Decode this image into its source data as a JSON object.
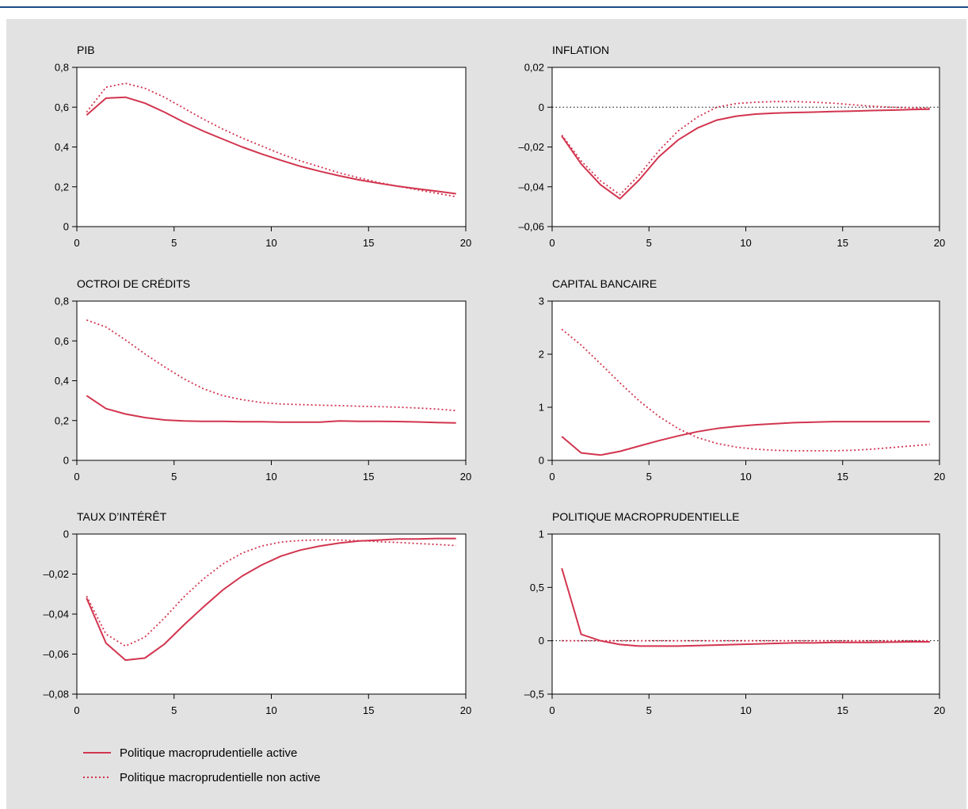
{
  "colors": {
    "series": "#d2354f",
    "background": "#e2e2e2",
    "rule": "#1c4e88"
  },
  "legend": {
    "items": [
      {
        "label": "Politique macroprudentielle active",
        "style": "solid"
      },
      {
        "label": "Politique macroprudentielle non active",
        "style": "dotted"
      }
    ]
  },
  "chart_data": [
    {
      "type": "line",
      "title": "PIB",
      "xlim": [
        0,
        20
      ],
      "ylim": [
        0,
        0.8
      ],
      "xticks": [
        0,
        5,
        10,
        15,
        20
      ],
      "xtick_labels": [
        "0",
        "5",
        "10",
        "15",
        "20"
      ],
      "yticks": [
        0,
        0.2,
        0.4,
        0.6,
        0.8
      ],
      "ytick_labels": [
        "0",
        "0,2",
        "0,4",
        "0,6",
        "0,8"
      ],
      "zero_line": false,
      "x": [
        0.5,
        1.5,
        2.5,
        3.5,
        4.5,
        5.5,
        6.5,
        7.5,
        8.5,
        9.5,
        10.5,
        11.5,
        12.5,
        13.5,
        14.5,
        15.5,
        16.5,
        17.5,
        18.5,
        19.5
      ],
      "series": [
        {
          "name": "Politique macroprudentielle active",
          "style": "solid",
          "values": [
            0.56,
            0.645,
            0.65,
            0.62,
            0.575,
            0.525,
            0.48,
            0.44,
            0.4,
            0.365,
            0.333,
            0.303,
            0.278,
            0.255,
            0.235,
            0.218,
            0.203,
            0.19,
            0.178,
            0.165
          ]
        },
        {
          "name": "Politique macroprudentielle non active",
          "style": "dotted",
          "values": [
            0.575,
            0.7,
            0.72,
            0.695,
            0.65,
            0.595,
            0.54,
            0.49,
            0.445,
            0.405,
            0.365,
            0.33,
            0.3,
            0.27,
            0.245,
            0.222,
            0.203,
            0.185,
            0.168,
            0.15
          ]
        }
      ]
    },
    {
      "type": "line",
      "title": "INFLATION",
      "xlim": [
        0,
        20
      ],
      "ylim": [
        -0.06,
        0.02
      ],
      "xticks": [
        0,
        5,
        10,
        15,
        20
      ],
      "xtick_labels": [
        "0",
        "5",
        "10",
        "15",
        "20"
      ],
      "yticks": [
        -0.06,
        -0.04,
        -0.02,
        0,
        0.02
      ],
      "ytick_labels": [
        "–0,06",
        "–0,04",
        "–0,02",
        "0",
        "0,02"
      ],
      "zero_line": true,
      "x": [
        0.5,
        1.5,
        2.5,
        3.5,
        4.5,
        5.5,
        6.5,
        7.5,
        8.5,
        9.5,
        10.5,
        11.5,
        12.5,
        13.5,
        14.5,
        15.5,
        16.5,
        17.5,
        18.5,
        19.5
      ],
      "series": [
        {
          "name": "Politique macroprudentielle active",
          "style": "solid",
          "values": [
            -0.0145,
            -0.0285,
            -0.039,
            -0.046,
            -0.0365,
            -0.025,
            -0.0165,
            -0.0105,
            -0.0065,
            -0.0045,
            -0.0035,
            -0.003,
            -0.0027,
            -0.0025,
            -0.0022,
            -0.002,
            -0.0017,
            -0.0015,
            -0.0012,
            -0.001
          ]
        },
        {
          "name": "Politique macroprudentielle non active",
          "style": "dotted",
          "values": [
            -0.014,
            -0.027,
            -0.037,
            -0.044,
            -0.034,
            -0.022,
            -0.012,
            -0.005,
            0.0,
            0.0018,
            0.0025,
            0.0028,
            0.0028,
            0.0025,
            0.002,
            0.0012,
            0.0005,
            0.0,
            -0.0003,
            -0.0005
          ]
        }
      ]
    },
    {
      "type": "line",
      "title": "OCTROI DE CRÉDITS",
      "xlim": [
        0,
        20
      ],
      "ylim": [
        0,
        0.8
      ],
      "xticks": [
        0,
        5,
        10,
        15,
        20
      ],
      "xtick_labels": [
        "0",
        "5",
        "10",
        "15",
        "20"
      ],
      "yticks": [
        0,
        0.2,
        0.4,
        0.6,
        0.8
      ],
      "ytick_labels": [
        "0",
        "0,2",
        "0,4",
        "0,6",
        "0,8"
      ],
      "zero_line": false,
      "x": [
        0.5,
        1.5,
        2.5,
        3.5,
        4.5,
        5.5,
        6.5,
        7.5,
        8.5,
        9.5,
        10.5,
        11.5,
        12.5,
        13.5,
        14.5,
        15.5,
        16.5,
        17.5,
        18.5,
        19.5
      ],
      "series": [
        {
          "name": "Politique macroprudentielle active",
          "style": "solid",
          "values": [
            0.325,
            0.26,
            0.233,
            0.215,
            0.203,
            0.198,
            0.196,
            0.196,
            0.194,
            0.194,
            0.192,
            0.192,
            0.192,
            0.198,
            0.196,
            0.196,
            0.195,
            0.193,
            0.19,
            0.188
          ]
        },
        {
          "name": "Politique macroprudentielle non active",
          "style": "dotted",
          "values": [
            0.705,
            0.67,
            0.605,
            0.535,
            0.47,
            0.41,
            0.36,
            0.325,
            0.305,
            0.29,
            0.283,
            0.28,
            0.277,
            0.275,
            0.272,
            0.27,
            0.267,
            0.263,
            0.258,
            0.25
          ]
        }
      ]
    },
    {
      "type": "line",
      "title": "CAPITAL BANCAIRE",
      "xlim": [
        0,
        20
      ],
      "ylim": [
        0,
        3
      ],
      "xticks": [
        0,
        5,
        10,
        15,
        20
      ],
      "xtick_labels": [
        "0",
        "5",
        "10",
        "15",
        "20"
      ],
      "yticks": [
        0,
        1,
        2,
        3
      ],
      "ytick_labels": [
        "0",
        "1",
        "2",
        "3"
      ],
      "zero_line": false,
      "x": [
        0.5,
        1.5,
        2.5,
        3.5,
        4.5,
        5.5,
        6.5,
        7.5,
        8.5,
        9.5,
        10.5,
        11.5,
        12.5,
        13.5,
        14.5,
        15.5,
        16.5,
        17.5,
        18.5,
        19.5
      ],
      "series": [
        {
          "name": "Politique macroprudentielle active",
          "style": "solid",
          "values": [
            0.45,
            0.14,
            0.1,
            0.17,
            0.27,
            0.37,
            0.46,
            0.54,
            0.6,
            0.64,
            0.67,
            0.69,
            0.71,
            0.72,
            0.73,
            0.73,
            0.73,
            0.73,
            0.73,
            0.73
          ]
        },
        {
          "name": "Politique macroprudentielle non active",
          "style": "dotted",
          "values": [
            2.47,
            2.17,
            1.82,
            1.46,
            1.12,
            0.83,
            0.6,
            0.43,
            0.32,
            0.25,
            0.21,
            0.19,
            0.18,
            0.18,
            0.18,
            0.19,
            0.21,
            0.24,
            0.27,
            0.3
          ]
        }
      ]
    },
    {
      "type": "line",
      "title": "TAUX D’INTÉRÊT",
      "xlim": [
        0,
        20
      ],
      "ylim": [
        -0.08,
        0
      ],
      "xticks": [
        0,
        5,
        10,
        15,
        20
      ],
      "xtick_labels": [
        "0",
        "5",
        "10",
        "15",
        "20"
      ],
      "yticks": [
        -0.08,
        -0.06,
        -0.04,
        -0.02,
        0
      ],
      "ytick_labels": [
        "–0,08",
        "–0,06",
        "–0,04",
        "–0,02",
        "0"
      ],
      "zero_line": false,
      "x": [
        0.5,
        1.5,
        2.5,
        3.5,
        4.5,
        5.5,
        6.5,
        7.5,
        8.5,
        9.5,
        10.5,
        11.5,
        12.5,
        13.5,
        14.5,
        15.5,
        16.5,
        17.5,
        18.5,
        19.5
      ],
      "series": [
        {
          "name": "Politique macroprudentielle active",
          "style": "solid",
          "values": [
            -0.032,
            -0.0545,
            -0.063,
            -0.062,
            -0.055,
            -0.0455,
            -0.0365,
            -0.028,
            -0.021,
            -0.0155,
            -0.011,
            -0.008,
            -0.006,
            -0.0045,
            -0.0035,
            -0.003,
            -0.0025,
            -0.0025,
            -0.0022,
            -0.0022
          ]
        },
        {
          "name": "Politique macroprudentielle non active",
          "style": "dotted",
          "values": [
            -0.031,
            -0.05,
            -0.056,
            -0.0515,
            -0.042,
            -0.0315,
            -0.0225,
            -0.015,
            -0.0095,
            -0.006,
            -0.004,
            -0.0032,
            -0.0029,
            -0.003,
            -0.0033,
            -0.0038,
            -0.0042,
            -0.0047,
            -0.0052,
            -0.0058
          ]
        }
      ]
    },
    {
      "type": "line",
      "title": "POLITIQUE MACROPRUDENTIELLE",
      "xlim": [
        0,
        20
      ],
      "ylim": [
        -0.5,
        1
      ],
      "xticks": [
        0,
        5,
        10,
        15,
        20
      ],
      "xtick_labels": [
        "0",
        "5",
        "10",
        "15",
        "20"
      ],
      "yticks": [
        -0.5,
        0,
        0.5,
        1
      ],
      "ytick_labels": [
        "–0,5",
        "0",
        "0,5",
        "1"
      ],
      "zero_line": true,
      "x": [
        0.5,
        1.5,
        2.5,
        3.5,
        4.5,
        5.5,
        6.5,
        7.5,
        8.5,
        9.5,
        10.5,
        11.5,
        12.5,
        13.5,
        14.5,
        15.5,
        16.5,
        17.5,
        18.5,
        19.5
      ],
      "series": [
        {
          "name": "Politique macroprudentielle active",
          "style": "solid",
          "values": [
            0.68,
            0.06,
            0.0,
            -0.035,
            -0.05,
            -0.05,
            -0.05,
            -0.045,
            -0.04,
            -0.035,
            -0.03,
            -0.025,
            -0.02,
            -0.02,
            -0.015,
            -0.015,
            -0.015,
            -0.013,
            -0.01,
            -0.01
          ]
        },
        {
          "name": "Politique macroprudentielle non active",
          "style": "dotted",
          "values": [
            0,
            0,
            0,
            0,
            0,
            0,
            0,
            0,
            0,
            0,
            0,
            0,
            0,
            0,
            0,
            0,
            0,
            0,
            0,
            0
          ]
        }
      ]
    }
  ]
}
